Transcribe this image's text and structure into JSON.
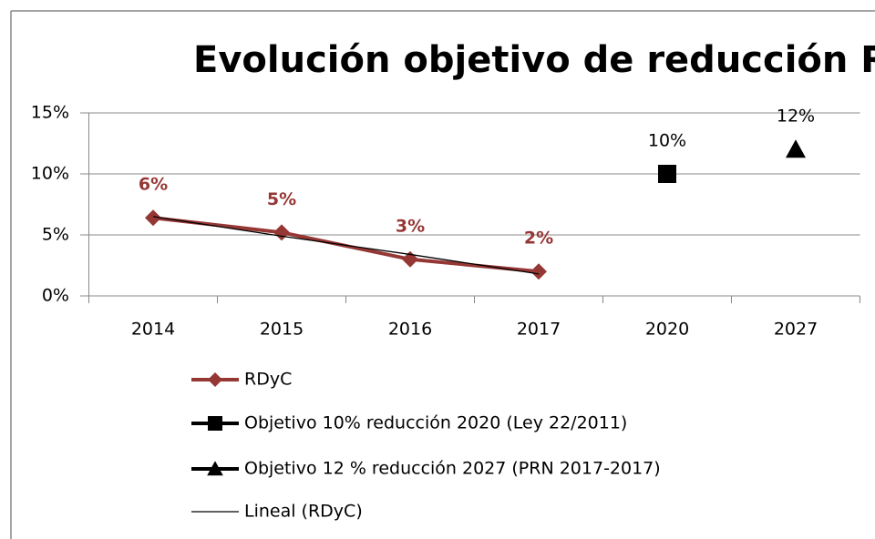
{
  "chart_data": {
    "type": "line",
    "title": "Evolución objetivo de reducción RDyC",
    "categories": [
      "2014",
      "2015",
      "2016",
      "2017",
      "2020",
      "2027"
    ],
    "ylim": [
      0,
      15
    ],
    "yticks": [
      {
        "value": 0,
        "label": "0%"
      },
      {
        "value": 5,
        "label": "5%"
      },
      {
        "value": 10,
        "label": "10%"
      },
      {
        "value": 15,
        "label": "15%"
      }
    ],
    "grid": true,
    "legend": "bottom",
    "series": [
      {
        "name": "RDyC",
        "color": "#953735",
        "marker": "diamond",
        "line_width": 4,
        "values": [
          6.4,
          5.2,
          3.0,
          2.0,
          null,
          null
        ],
        "value_labels": [
          "6%",
          "5%",
          "3%",
          "2%",
          null,
          null
        ]
      },
      {
        "name": "Objetivo 10% reducción 2020 (Ley 22/2011)",
        "color": "#000000",
        "marker": "square",
        "line_width": 4,
        "values": [
          null,
          null,
          null,
          null,
          10,
          null
        ],
        "value_labels": [
          null,
          null,
          null,
          null,
          "10%",
          null
        ]
      },
      {
        "name": "Objetivo 12 % reducción 2027 (PRN 2017-2017)",
        "color": "#000000",
        "marker": "triangle",
        "line_width": 4,
        "values": [
          null,
          null,
          null,
          null,
          null,
          12
        ],
        "value_labels": [
          null,
          null,
          null,
          null,
          null,
          "12%"
        ]
      },
      {
        "name": "Lineal (RDyC)",
        "color": "#000000",
        "marker": "none",
        "line_width": 1.3,
        "values": [
          6.5,
          4.9,
          3.4,
          1.8,
          null,
          null
        ]
      }
    ]
  }
}
